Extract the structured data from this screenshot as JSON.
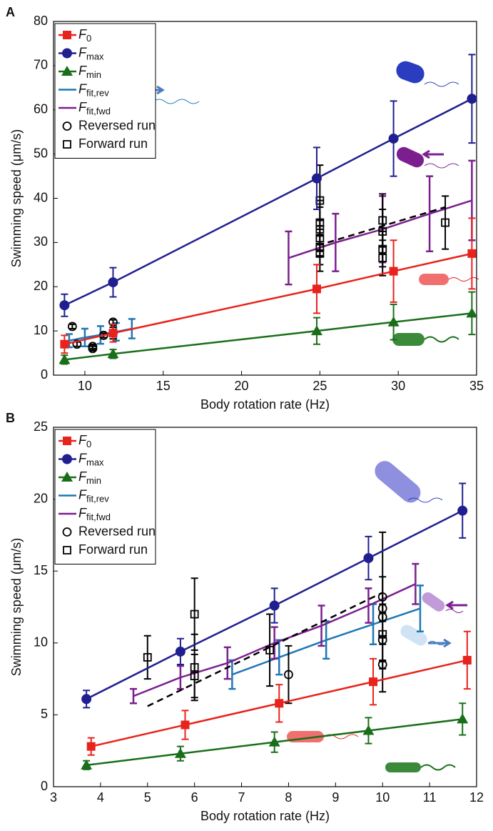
{
  "chart_data": [
    {
      "type": "errorbar",
      "panel": "A",
      "xlabel": "Body rotation rate (Hz)",
      "ylabel": "Swimming speed (μm/s)",
      "xlim": [
        8,
        35
      ],
      "ylim": [
        0,
        80
      ],
      "xticks": [
        10,
        15,
        20,
        25,
        30,
        35
      ],
      "yticks": [
        0,
        10,
        20,
        30,
        40,
        50,
        60,
        70,
        80
      ],
      "legend": "upper-left",
      "series": [
        {
          "name": "F",
          "subscript": "0",
          "color": "#e8221c",
          "marker": "square",
          "line": true,
          "x": [
            8.7,
            11.8,
            24.8,
            29.7,
            34.7
          ],
          "values": [
            7,
            9.5,
            19.5,
            23.5,
            27.5
          ],
          "errors": [
            2,
            2,
            5.5,
            7,
            8
          ]
        },
        {
          "name": "F",
          "subscript": "max",
          "color": "#1f1f8f",
          "marker": "circle",
          "line": true,
          "x": [
            8.7,
            11.8,
            24.8,
            29.7,
            34.7
          ],
          "values": [
            15.8,
            21,
            44.5,
            53.5,
            62.5
          ],
          "errors": [
            2.5,
            3.3,
            7,
            8.5,
            10
          ]
        },
        {
          "name": "F",
          "subscript": "min",
          "color": "#1a6e1a",
          "marker": "triangle",
          "line": true,
          "x": [
            8.7,
            11.8,
            24.8,
            29.7,
            34.7
          ],
          "values": [
            3.5,
            4.8,
            10,
            12,
            14
          ],
          "errors": [
            1,
            1,
            3,
            4,
            4.8
          ]
        },
        {
          "name": "F",
          "subscript": "fit,rev",
          "color": "#1f77b4",
          "marker": "none",
          "line": true,
          "x": [
            9,
            10,
            11,
            12,
            13
          ],
          "values": [
            7.8,
            8.5,
            9.1,
            9.8,
            10.5
          ],
          "errors": [
            1.5,
            2,
            2,
            2,
            2.2
          ]
        },
        {
          "name": "F",
          "subscript": "fit,fwd",
          "color": "#7b1f8f",
          "marker": "none",
          "line": true,
          "x": [
            23,
            26,
            29,
            32,
            34.7
          ],
          "values": [
            26.5,
            30,
            33,
            36.5,
            39.5
          ],
          "errors": [
            6,
            6.5,
            7.5,
            8.5,
            9
          ]
        },
        {
          "name": "Reversed run",
          "color": "#000000",
          "marker": "open-circle",
          "line": false,
          "x": [
            9.2,
            9.5,
            10.5,
            10.5,
            11.2,
            11.8,
            11.8
          ],
          "values": [
            11,
            7,
            6.5,
            6,
            9,
            9.5,
            12
          ],
          "errors": [
            0.5,
            0.5,
            0.5,
            0.5,
            0.5,
            1.3,
            0.5
          ]
        },
        {
          "name": "Forward run",
          "color": "#000000",
          "marker": "open-square",
          "line": false,
          "x": [
            25,
            25,
            25,
            25,
            25,
            25,
            29,
            29,
            29,
            29,
            33
          ],
          "values": [
            39.5,
            34.5,
            33,
            31,
            29,
            27.5,
            35,
            32.5,
            28.5,
            26.5,
            34.5
          ],
          "errors": [
            8,
            5,
            5,
            4,
            4,
            4,
            6,
            5,
            4,
            4,
            6
          ],
          "trend": {
            "x": [
              25.5,
              33
            ],
            "values": [
              30,
              38
            ]
          }
        }
      ]
    },
    {
      "type": "errorbar",
      "panel": "B",
      "xlabel": "Body rotation rate (Hz)",
      "ylabel": "Swimming speed (μm/s)",
      "xlim": [
        3,
        12
      ],
      "ylim": [
        0,
        25
      ],
      "xticks": [
        3,
        4,
        5,
        6,
        7,
        8,
        9,
        10,
        11,
        12
      ],
      "yticks": [
        0,
        5,
        10,
        15,
        20,
        25
      ],
      "legend": "upper-left",
      "series": [
        {
          "name": "F",
          "subscript": "0",
          "color": "#e8221c",
          "marker": "square",
          "line": true,
          "x": [
            3.8,
            5.8,
            7.8,
            9.8,
            11.8
          ],
          "values": [
            2.8,
            4.3,
            5.8,
            7.3,
            8.8
          ],
          "errors": [
            0.6,
            1,
            1.3,
            1.6,
            2
          ]
        },
        {
          "name": "F",
          "subscript": "max",
          "color": "#1f1f8f",
          "marker": "circle",
          "line": true,
          "x": [
            3.7,
            5.7,
            7.7,
            9.7,
            11.7
          ],
          "values": [
            6.1,
            9.4,
            12.6,
            15.9,
            19.2
          ],
          "errors": [
            0.6,
            0.9,
            1.2,
            1.5,
            1.9
          ]
        },
        {
          "name": "F",
          "subscript": "min",
          "color": "#1a6e1a",
          "marker": "triangle",
          "line": true,
          "x": [
            3.7,
            5.7,
            7.7,
            9.7,
            11.7
          ],
          "values": [
            1.5,
            2.3,
            3.1,
            3.9,
            4.7
          ],
          "errors": [
            0.3,
            0.5,
            0.7,
            0.9,
            1.1
          ]
        },
        {
          "name": "F",
          "subscript": "fit,rev",
          "color": "#1f77b4",
          "marker": "none",
          "line": true,
          "x": [
            6.8,
            7.8,
            8.8,
            9.8,
            10.8
          ],
          "values": [
            7.8,
            9,
            10.2,
            11.3,
            12.4
          ],
          "errors": [
            1,
            1.2,
            1.3,
            1.4,
            1.6
          ]
        },
        {
          "name": "F",
          "subscript": "fit,fwd",
          "color": "#7b1f8f",
          "marker": "none",
          "line": true,
          "x": [
            4.7,
            5.7,
            6.7,
            7.7,
            8.7,
            9.7,
            10.7
          ],
          "values": [
            6.3,
            7.6,
            8.6,
            10,
            11.2,
            12.6,
            14.1
          ],
          "errors": [
            0.5,
            0.8,
            1.1,
            1.1,
            1.4,
            1.2,
            1.4
          ]
        },
        {
          "name": "Reversed run",
          "color": "#000000",
          "marker": "open-circle",
          "line": false,
          "x": [
            8,
            10,
            10,
            10,
            10,
            10
          ],
          "values": [
            7.8,
            13.2,
            12.4,
            11.8,
            10.2,
            8.5
          ],
          "errors": [
            2,
            4.5,
            0.3,
            0.3,
            0.3,
            0.3
          ]
        },
        {
          "name": "Forward run",
          "color": "#000000",
          "marker": "open-square",
          "line": false,
          "x": [
            5,
            6,
            6,
            6,
            7.6,
            10
          ],
          "values": [
            9,
            12,
            8.3,
            7.7,
            9.5,
            10.6
          ],
          "errors": [
            1.5,
            2.5,
            2.3,
            1.5,
            2.5,
            4
          ],
          "trend": {
            "x": [
              5,
              10
            ],
            "values": [
              5.6,
              13.5
            ]
          }
        }
      ]
    }
  ]
}
